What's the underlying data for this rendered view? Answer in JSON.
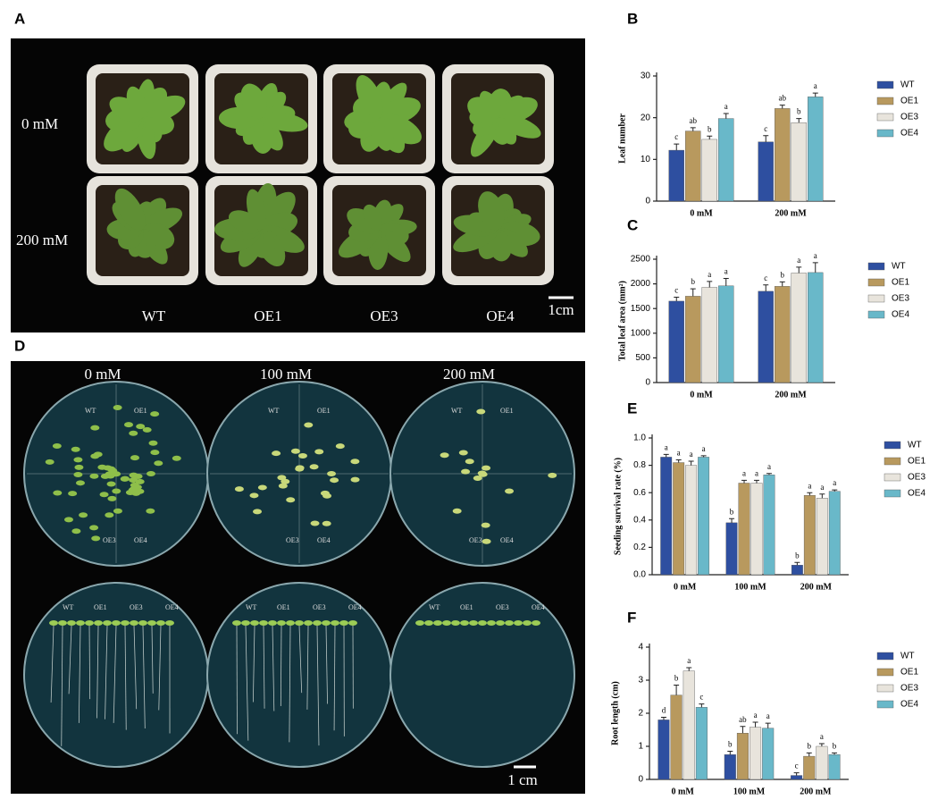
{
  "panels": {
    "A": {
      "label": "A",
      "rows": [
        "0 mM",
        "200 mM"
      ],
      "columns": [
        "WT",
        "OE1",
        "OE3",
        "OE4"
      ],
      "scale": "1cm"
    },
    "D": {
      "label": "D",
      "columns": [
        "0 mM",
        "100 mM",
        "200 mM"
      ],
      "plate_labels": [
        "WT",
        "OE1",
        "OE3",
        "OE4"
      ],
      "scale": "1 cm"
    }
  },
  "chart_data": [
    {
      "type": "bar",
      "panel": "B",
      "y_label": "Leaf number",
      "categories": [
        "0 mM",
        "200 mM"
      ],
      "ylim": [
        0,
        30
      ],
      "yticks": [
        0,
        10,
        20,
        30
      ],
      "series": [
        {
          "name": "WT",
          "color": "#2e4fa0",
          "values": [
            12.2,
            14.2
          ],
          "errors": [
            1.5,
            1.5
          ],
          "significance": [
            "c",
            "c"
          ]
        },
        {
          "name": "OE1",
          "color": "#b8995e",
          "values": [
            16.8,
            22.2
          ],
          "errors": [
            0.8,
            0.8
          ],
          "significance": [
            "ab",
            "ab"
          ]
        },
        {
          "name": "OE3",
          "color": "#e8e4dc",
          "values": [
            14.8,
            18.8
          ],
          "errors": [
            0.8,
            1.0
          ],
          "significance": [
            "b",
            "b"
          ]
        },
        {
          "name": "OE4",
          "color": "#69b8c9",
          "values": [
            19.8,
            25.0
          ],
          "errors": [
            1.2,
            0.9
          ],
          "significance": [
            "a",
            "a"
          ]
        }
      ]
    },
    {
      "type": "bar",
      "panel": "C",
      "y_label": "Total leaf area (mm²)",
      "categories": [
        "0 mM",
        "200 mM"
      ],
      "ylim": [
        0,
        2500
      ],
      "yticks": [
        0,
        500,
        1000,
        1500,
        2000,
        2500
      ],
      "series": [
        {
          "name": "WT",
          "color": "#2e4fa0",
          "values": [
            1650,
            1850
          ],
          "errors": [
            80,
            130
          ],
          "significance": [
            "c",
            "c"
          ]
        },
        {
          "name": "OE1",
          "color": "#b8995e",
          "values": [
            1750,
            1950
          ],
          "errors": [
            150,
            90
          ],
          "significance": [
            "b",
            "b"
          ]
        },
        {
          "name": "OE3",
          "color": "#e8e4dc",
          "values": [
            1930,
            2220
          ],
          "errors": [
            120,
            120
          ],
          "significance": [
            "a",
            "a"
          ]
        },
        {
          "name": "OE4",
          "color": "#69b8c9",
          "values": [
            1960,
            2230
          ],
          "errors": [
            150,
            200
          ],
          "significance": [
            "a",
            "a"
          ]
        }
      ]
    },
    {
      "type": "bar",
      "panel": "E",
      "y_label": "Seeding survival rate (%)",
      "categories": [
        "0 mM",
        "100 mM",
        "200 mM"
      ],
      "ylim": [
        0,
        1.0
      ],
      "yticks": [
        {
          "value": 0,
          "label": "0.0"
        },
        0.2,
        0.4,
        0.6,
        0.8,
        {
          "value": 1,
          "label": "1.0"
        }
      ],
      "series": [
        {
          "name": "WT",
          "color": "#2e4fa0",
          "values": [
            0.86,
            0.38,
            0.07
          ],
          "errors": [
            0.02,
            0.03,
            0.02
          ],
          "significance": [
            "a",
            "b",
            "b"
          ]
        },
        {
          "name": "OE1",
          "color": "#b8995e",
          "values": [
            0.82,
            0.67,
            0.58
          ],
          "errors": [
            0.02,
            0.02,
            0.02
          ],
          "significance": [
            "a",
            "a",
            "a"
          ]
        },
        {
          "name": "OE3",
          "color": "#e8e4dc",
          "values": [
            0.8,
            0.67,
            0.56
          ],
          "errors": [
            0.03,
            0.02,
            0.03
          ],
          "significance": [
            "a",
            "a",
            "a"
          ]
        },
        {
          "name": "OE4",
          "color": "#69b8c9",
          "values": [
            0.86,
            0.73,
            0.61
          ],
          "errors": [
            0.01,
            0.01,
            0.01
          ],
          "significance": [
            "a",
            "a",
            "a"
          ]
        }
      ]
    },
    {
      "type": "bar",
      "panel": "F",
      "y_label": "Root length (cm)",
      "categories": [
        "0 mM",
        "100 mM",
        "200 mM"
      ],
      "ylim": [
        0,
        4
      ],
      "yticks": [
        0,
        1,
        2,
        3,
        4
      ],
      "series": [
        {
          "name": "WT",
          "color": "#2e4fa0",
          "values": [
            1.8,
            0.75,
            0.12
          ],
          "errors": [
            0.08,
            0.1,
            0.08
          ],
          "significance": [
            "d",
            "b",
            "c"
          ]
        },
        {
          "name": "OE1",
          "color": "#b8995e",
          "values": [
            2.55,
            1.4,
            0.7
          ],
          "errors": [
            0.3,
            0.2,
            0.1
          ],
          "significance": [
            "b",
            "ab",
            "b"
          ]
        },
        {
          "name": "OE3",
          "color": "#e8e4dc",
          "values": [
            3.28,
            1.58,
            1.0
          ],
          "errors": [
            0.1,
            0.15,
            0.08
          ],
          "significance": [
            "a",
            "a",
            "a"
          ]
        },
        {
          "name": "OE4",
          "color": "#69b8c9",
          "values": [
            2.18,
            1.55,
            0.75
          ],
          "errors": [
            0.1,
            0.15,
            0.05
          ],
          "significance": [
            "c",
            "a",
            "b"
          ]
        }
      ]
    }
  ]
}
